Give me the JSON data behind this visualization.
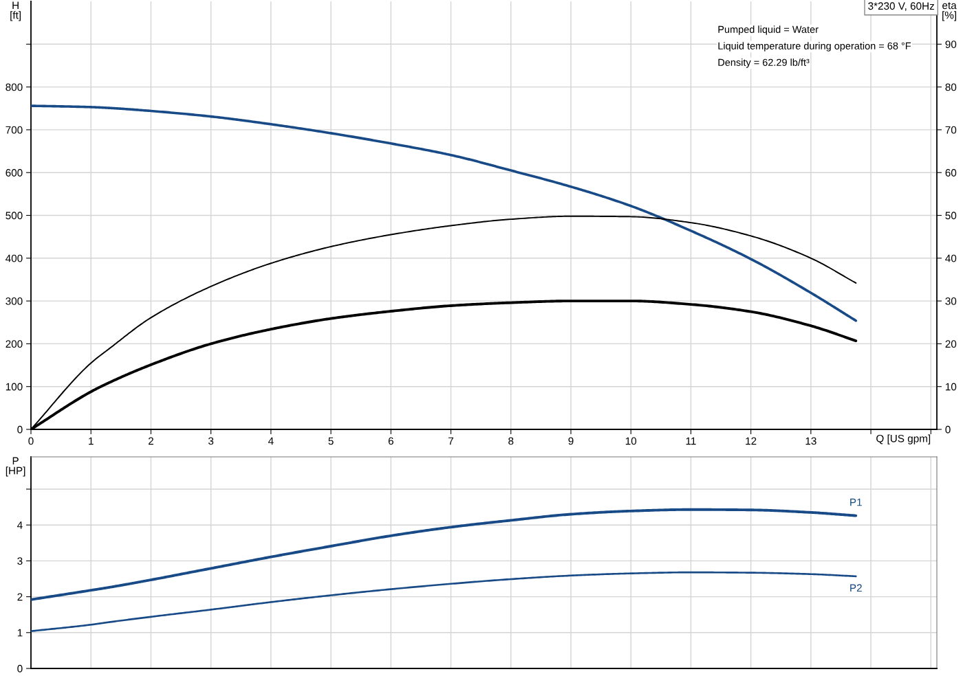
{
  "chart_data": [
    {
      "type": "line",
      "title": "3*230 V, 60Hz",
      "xlabel": "Q [US gpm]",
      "ylabel": "H\n[ft]",
      "y2label": "eta\n[%]",
      "annotations": [
        "Pumped liquid = Water",
        "Liquid temperature during operation = 68 °F",
        "Density = 62.29 lb/ft³"
      ],
      "x": [
        0,
        1,
        1.3,
        2,
        3,
        4,
        5,
        6,
        7,
        8,
        9,
        10,
        11,
        12,
        13,
        13.75
      ],
      "series": [
        {
          "color": "#174a86",
          "values": [
            756,
            753,
            751,
            744,
            731,
            713,
            692,
            668,
            641,
            605,
            567,
            522,
            464,
            398,
            319,
            254
          ]
        },
        {
          "color": "#000000",
          "axis": "y2",
          "values": [
            0,
            15.5,
            18.8,
            26.1,
            33.4,
            38.8,
            42.7,
            45.5,
            47.6,
            49.1,
            49.8,
            49.7,
            48.3,
            45.2,
            40.0,
            34.2
          ]
        },
        {
          "color": "#000000",
          "axis": "y2",
          "values": [
            0,
            8.8,
            10.9,
            15.1,
            20.0,
            23.4,
            25.9,
            27.6,
            28.9,
            29.6,
            30.0,
            30.0,
            29.2,
            27.5,
            24.2,
            20.7
          ]
        }
      ],
      "xlim": [
        0,
        15.1
      ],
      "xticks": [
        0,
        1,
        2,
        3,
        4,
        5,
        6,
        7,
        8,
        9,
        10,
        11,
        12,
        13,
        {
          "value": 14,
          "label": null
        },
        {
          "value": 15,
          "label": null
        }
      ],
      "ylim": [
        0,
        1000
      ],
      "yticks": [
        0,
        100,
        200,
        300,
        400,
        500,
        600,
        700,
        800,
        {
          "value": 900,
          "label": null
        }
      ],
      "y2lim": [
        0,
        100
      ],
      "y2ticks": [
        0,
        10,
        20,
        30,
        40,
        50,
        60,
        70,
        80,
        90
      ],
      "grid": true
    },
    {
      "type": "line",
      "ylabel": "P\n[HP]",
      "x": [
        0,
        1,
        1.3,
        2,
        3,
        4,
        5,
        6,
        7,
        8,
        9,
        10,
        11,
        12,
        13,
        13.75
      ],
      "series": [
        {
          "name": "P1",
          "color": "#174a86",
          "values": [
            1.92,
            2.18,
            2.26,
            2.47,
            2.79,
            3.11,
            3.41,
            3.7,
            3.94,
            4.13,
            4.3,
            4.39,
            4.43,
            4.42,
            4.35,
            4.26
          ]
        },
        {
          "name": "P2",
          "color": "#174a86",
          "values": [
            1.04,
            1.22,
            1.29,
            1.44,
            1.64,
            1.85,
            2.04,
            2.21,
            2.36,
            2.49,
            2.59,
            2.65,
            2.68,
            2.67,
            2.63,
            2.57
          ]
        }
      ],
      "xlim": [
        0,
        15.1
      ],
      "xticks": [
        0,
        1,
        2,
        3,
        4,
        5,
        6,
        7,
        8,
        9,
        10,
        11,
        12,
        13,
        14,
        15
      ],
      "ylim": [
        0,
        5.9
      ],
      "yticks": [
        0,
        1,
        2,
        3,
        4,
        {
          "value": 5,
          "label": null
        }
      ],
      "tick_labels": "y",
      "grid": true
    }
  ]
}
